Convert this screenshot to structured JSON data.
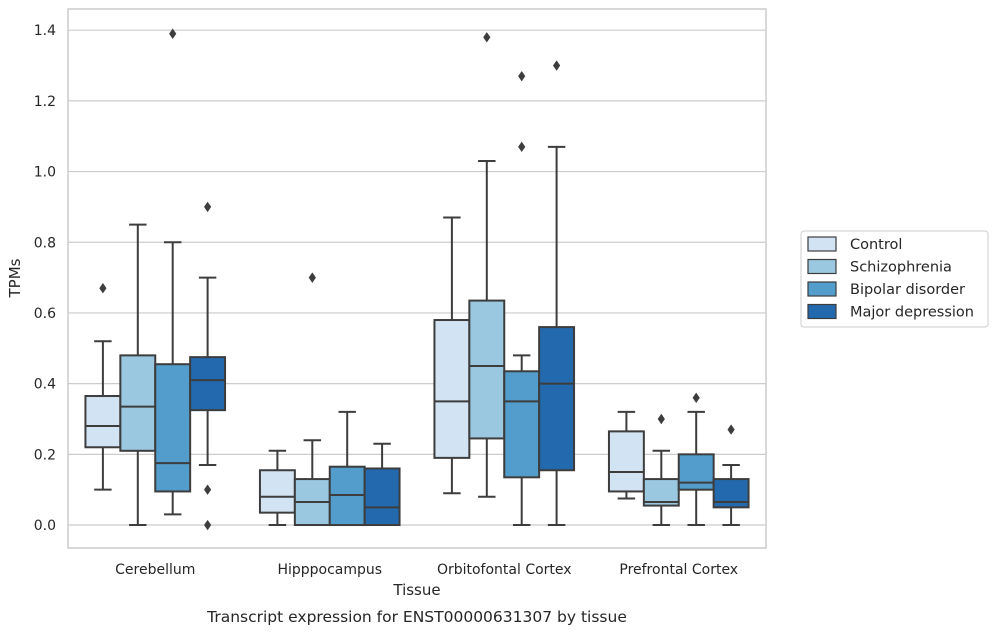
{
  "chart_data": {
    "type": "box",
    "caption": "Transcript expression for ENST00000631307 by tissue",
    "xlabel": "Tissue",
    "ylabel": "TPMs",
    "ylim": [
      -0.065,
      1.46
    ],
    "yticks": [
      0.0,
      0.2,
      0.4,
      0.6,
      0.8,
      1.0,
      1.2,
      1.4
    ],
    "ytick_labels": [
      "0.0",
      "0.2",
      "0.4",
      "0.6",
      "0.8",
      "1.0",
      "1.2",
      "1.4"
    ],
    "grid": "horizontal",
    "legend_position": "right",
    "categories": [
      "Cerebellum",
      "Hipppocampus",
      "Orbitofontal Cortex",
      "Prefrontal Cortex"
    ],
    "series": [
      {
        "name": "Control",
        "color": "#d2e3f3",
        "boxes": [
          {
            "whislo": 0.1,
            "q1": 0.22,
            "med": 0.28,
            "q3": 0.365,
            "whishi": 0.52,
            "fliers": [
              0.67
            ]
          },
          {
            "whislo": 0.0,
            "q1": 0.035,
            "med": 0.08,
            "q3": 0.155,
            "whishi": 0.21,
            "fliers": []
          },
          {
            "whislo": 0.09,
            "q1": 0.19,
            "med": 0.35,
            "q3": 0.58,
            "whishi": 0.87,
            "fliers": []
          },
          {
            "whislo": 0.075,
            "q1": 0.095,
            "med": 0.15,
            "q3": 0.265,
            "whishi": 0.32,
            "fliers": []
          }
        ]
      },
      {
        "name": "Schizophrenia",
        "color": "#9ac8e0",
        "boxes": [
          {
            "whislo": 0.0,
            "q1": 0.21,
            "med": 0.335,
            "q3": 0.48,
            "whishi": 0.85,
            "fliers": []
          },
          {
            "whislo": 0.0,
            "q1": 0.0,
            "med": 0.065,
            "q3": 0.13,
            "whishi": 0.24,
            "fliers": [
              0.7
            ]
          },
          {
            "whislo": 0.08,
            "q1": 0.245,
            "med": 0.45,
            "q3": 0.635,
            "whishi": 1.03,
            "fliers": [
              1.38
            ]
          },
          {
            "whislo": 0.0,
            "q1": 0.055,
            "med": 0.065,
            "q3": 0.13,
            "whishi": 0.21,
            "fliers": [
              0.3
            ]
          }
        ]
      },
      {
        "name": "Bipolar disorder",
        "color": "#529dcc",
        "boxes": [
          {
            "whislo": 0.03,
            "q1": 0.095,
            "med": 0.175,
            "q3": 0.455,
            "whishi": 0.8,
            "fliers": [
              1.39
            ]
          },
          {
            "whislo": 0.0,
            "q1": 0.0,
            "med": 0.085,
            "q3": 0.165,
            "whishi": 0.32,
            "fliers": []
          },
          {
            "whislo": 0.0,
            "q1": 0.135,
            "med": 0.35,
            "q3": 0.435,
            "whishi": 0.48,
            "fliers": [
              1.07,
              1.27
            ]
          },
          {
            "whislo": 0.0,
            "q1": 0.1,
            "med": 0.12,
            "q3": 0.2,
            "whishi": 0.32,
            "fliers": [
              0.36
            ]
          }
        ]
      },
      {
        "name": "Major depression",
        "color": "#2269ae",
        "boxes": [
          {
            "whislo": 0.17,
            "q1": 0.325,
            "med": 0.41,
            "q3": 0.475,
            "whishi": 0.7,
            "fliers": [
              0.9,
              0.1,
              0.0
            ]
          },
          {
            "whislo": 0.0,
            "q1": 0.0,
            "med": 0.05,
            "q3": 0.16,
            "whishi": 0.23,
            "fliers": []
          },
          {
            "whislo": 0.0,
            "q1": 0.155,
            "med": 0.4,
            "q3": 0.56,
            "whishi": 1.07,
            "fliers": [
              1.3
            ]
          },
          {
            "whislo": 0.0,
            "q1": 0.05,
            "med": 0.065,
            "q3": 0.13,
            "whishi": 0.17,
            "fliers": [
              0.27
            ]
          }
        ]
      }
    ]
  }
}
